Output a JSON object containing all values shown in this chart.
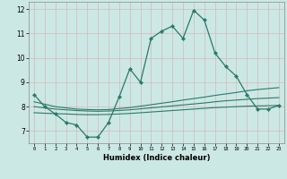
{
  "xlabel": "Humidex (Indice chaleur)",
  "xlim": [
    -0.5,
    23.5
  ],
  "ylim": [
    6.5,
    12.3
  ],
  "yticks": [
    7,
    8,
    9,
    10,
    11,
    12
  ],
  "xticks": [
    0,
    1,
    2,
    3,
    4,
    5,
    6,
    7,
    8,
    9,
    10,
    11,
    12,
    13,
    14,
    15,
    16,
    17,
    18,
    19,
    20,
    21,
    22,
    23
  ],
  "bg_color": "#cce8e4",
  "grid_color": "#b8d8d4",
  "line_color": "#2a7a6a",
  "line1_x": [
    0,
    1,
    2,
    3,
    4,
    5,
    6,
    7,
    8,
    9,
    10,
    11,
    12,
    13,
    14,
    15,
    16,
    17,
    18,
    19,
    20,
    21,
    22,
    23
  ],
  "line1_y": [
    8.5,
    8.0,
    7.7,
    7.35,
    7.25,
    6.75,
    6.75,
    7.35,
    8.4,
    9.55,
    9.0,
    10.8,
    11.1,
    11.3,
    10.8,
    11.95,
    11.55,
    10.2,
    9.65,
    9.25,
    8.5,
    7.9,
    7.9,
    8.05
  ],
  "line2_x": [
    0,
    1,
    2,
    3,
    4,
    5,
    6,
    7,
    8,
    9,
    10,
    11,
    12,
    13,
    14,
    15,
    16,
    17,
    18,
    19,
    20,
    21,
    22,
    23
  ],
  "line2_y": [
    8.2,
    8.1,
    8.0,
    7.95,
    7.9,
    7.88,
    7.87,
    7.88,
    7.92,
    7.96,
    8.02,
    8.08,
    8.14,
    8.2,
    8.27,
    8.33,
    8.39,
    8.46,
    8.52,
    8.58,
    8.65,
    8.7,
    8.74,
    8.78
  ],
  "line3_x": [
    0,
    1,
    2,
    3,
    4,
    5,
    6,
    7,
    8,
    9,
    10,
    11,
    12,
    13,
    14,
    15,
    16,
    17,
    18,
    19,
    20,
    21,
    22,
    23
  ],
  "line3_y": [
    8.0,
    7.95,
    7.9,
    7.87,
    7.84,
    7.82,
    7.81,
    7.82,
    7.84,
    7.87,
    7.91,
    7.95,
    7.99,
    8.03,
    8.07,
    8.11,
    8.15,
    8.2,
    8.24,
    8.27,
    8.3,
    8.33,
    8.35,
    8.37
  ],
  "line4_x": [
    0,
    1,
    2,
    3,
    4,
    5,
    6,
    7,
    8,
    9,
    10,
    11,
    12,
    13,
    14,
    15,
    16,
    17,
    18,
    19,
    20,
    21,
    22,
    23
  ],
  "line4_y": [
    7.75,
    7.73,
    7.71,
    7.7,
    7.68,
    7.67,
    7.67,
    7.68,
    7.7,
    7.72,
    7.75,
    7.78,
    7.81,
    7.84,
    7.87,
    7.9,
    7.93,
    7.96,
    7.98,
    8.0,
    8.02,
    8.03,
    8.04,
    8.05
  ]
}
